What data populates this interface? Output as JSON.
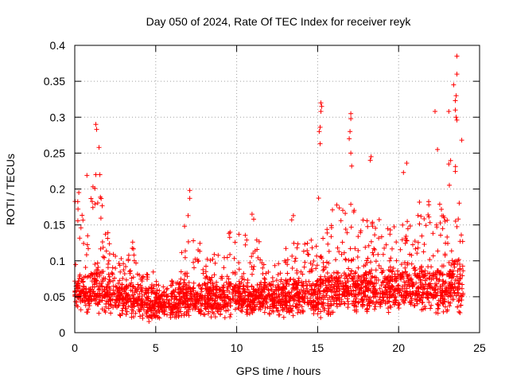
{
  "chart_data": {
    "type": "scatter",
    "title": "Day 050 of 2024, Rate Of TEC Index for receiver reyk",
    "xlabel": "GPS time / hours",
    "ylabel": "ROTI / TECUs",
    "xlim": [
      0,
      25
    ],
    "ylim": [
      0,
      0.4
    ],
    "xticks": [
      "0",
      "5",
      "10",
      "15",
      "20",
      "25"
    ],
    "yticks": [
      "0",
      "0.05",
      "0.1",
      "0.15",
      "0.2",
      "0.25",
      "0.3",
      "0.35",
      "0.4"
    ],
    "xtick_values": [
      0,
      5,
      10,
      15,
      20,
      25
    ],
    "ytick_values": [
      0,
      0.05,
      0.1,
      0.15,
      0.2,
      0.25,
      0.3,
      0.35,
      0.4
    ],
    "grid": true,
    "marker": "plus",
    "color": "#ff0000",
    "data_extent_x": [
      0,
      24
    ],
    "highlights": [
      {
        "x": 1.3,
        "y": 0.29
      },
      {
        "x": 1.35,
        "y": 0.283
      },
      {
        "x": 1.5,
        "y": 0.258
      },
      {
        "x": 0.75,
        "y": 0.219
      },
      {
        "x": 1.3,
        "y": 0.22
      },
      {
        "x": 1.55,
        "y": 0.22
      },
      {
        "x": 0.25,
        "y": 0.195
      },
      {
        "x": 0.2,
        "y": 0.172
      },
      {
        "x": 7.1,
        "y": 0.198
      },
      {
        "x": 7.1,
        "y": 0.187
      },
      {
        "x": 7.0,
        "y": 0.163
      },
      {
        "x": 10.95,
        "y": 0.165
      },
      {
        "x": 11.05,
        "y": 0.158
      },
      {
        "x": 13.5,
        "y": 0.163
      },
      {
        "x": 13.4,
        "y": 0.157
      },
      {
        "x": 15.2,
        "y": 0.32
      },
      {
        "x": 15.25,
        "y": 0.315
      },
      {
        "x": 15.2,
        "y": 0.308
      },
      {
        "x": 15.15,
        "y": 0.286
      },
      {
        "x": 15.1,
        "y": 0.28
      },
      {
        "x": 15.15,
        "y": 0.263
      },
      {
        "x": 17.05,
        "y": 0.305
      },
      {
        "x": 17.05,
        "y": 0.298
      },
      {
        "x": 17.0,
        "y": 0.28
      },
      {
        "x": 16.95,
        "y": 0.27
      },
      {
        "x": 17.05,
        "y": 0.25
      },
      {
        "x": 17.1,
        "y": 0.232
      },
      {
        "x": 18.3,
        "y": 0.245
      },
      {
        "x": 18.25,
        "y": 0.24
      },
      {
        "x": 20.5,
        "y": 0.236
      },
      {
        "x": 20.3,
        "y": 0.223
      },
      {
        "x": 22.25,
        "y": 0.308
      },
      {
        "x": 23.6,
        "y": 0.385
      },
      {
        "x": 23.6,
        "y": 0.36
      },
      {
        "x": 23.4,
        "y": 0.345
      },
      {
        "x": 23.55,
        "y": 0.33
      },
      {
        "x": 23.5,
        "y": 0.323
      },
      {
        "x": 23.5,
        "y": 0.31
      },
      {
        "x": 23.1,
        "y": 0.308
      },
      {
        "x": 23.55,
        "y": 0.3
      },
      {
        "x": 23.6,
        "y": 0.296
      },
      {
        "x": 23.9,
        "y": 0.268
      },
      {
        "x": 22.4,
        "y": 0.255
      }
    ],
    "activity_profile": [
      {
        "from": 0.0,
        "to": 0.5,
        "base_low": 0.03,
        "base_high": 0.065,
        "upper": 0.19
      },
      {
        "from": 0.5,
        "to": 1.0,
        "base_low": 0.025,
        "base_high": 0.07,
        "upper": 0.16
      },
      {
        "from": 1.0,
        "to": 1.7,
        "base_low": 0.025,
        "base_high": 0.08,
        "upper": 0.22
      },
      {
        "from": 1.7,
        "to": 2.5,
        "base_low": 0.02,
        "base_high": 0.07,
        "upper": 0.14
      },
      {
        "from": 2.5,
        "to": 3.5,
        "base_low": 0.02,
        "base_high": 0.06,
        "upper": 0.11
      },
      {
        "from": 3.5,
        "to": 4.0,
        "base_low": 0.02,
        "base_high": 0.06,
        "upper": 0.13
      },
      {
        "from": 4.0,
        "to": 5.0,
        "base_low": 0.015,
        "base_high": 0.055,
        "upper": 0.085
      },
      {
        "from": 5.0,
        "to": 6.5,
        "base_low": 0.015,
        "base_high": 0.05,
        "upper": 0.075
      },
      {
        "from": 6.5,
        "to": 7.8,
        "base_low": 0.02,
        "base_high": 0.06,
        "upper": 0.15
      },
      {
        "from": 7.8,
        "to": 9.5,
        "base_low": 0.02,
        "base_high": 0.06,
        "upper": 0.11
      },
      {
        "from": 9.5,
        "to": 11.5,
        "base_low": 0.02,
        "base_high": 0.06,
        "upper": 0.14
      },
      {
        "from": 11.5,
        "to": 13.0,
        "base_low": 0.02,
        "base_high": 0.06,
        "upper": 0.1
      },
      {
        "from": 13.0,
        "to": 15.0,
        "base_low": 0.02,
        "base_high": 0.065,
        "upper": 0.13
      },
      {
        "from": 15.0,
        "to": 16.0,
        "base_low": 0.02,
        "base_high": 0.07,
        "upper": 0.19
      },
      {
        "from": 16.0,
        "to": 17.5,
        "base_low": 0.025,
        "base_high": 0.075,
        "upper": 0.18
      },
      {
        "from": 17.5,
        "to": 19.0,
        "base_low": 0.025,
        "base_high": 0.075,
        "upper": 0.17
      },
      {
        "from": 19.0,
        "to": 20.5,
        "base_low": 0.025,
        "base_high": 0.075,
        "upper": 0.15
      },
      {
        "from": 20.5,
        "to": 22.0,
        "base_low": 0.025,
        "base_high": 0.08,
        "upper": 0.19
      },
      {
        "from": 22.0,
        "to": 23.0,
        "base_low": 0.025,
        "base_high": 0.08,
        "upper": 0.18
      },
      {
        "from": 23.0,
        "to": 24.0,
        "base_low": 0.02,
        "base_high": 0.085,
        "upper": 0.24
      }
    ]
  }
}
